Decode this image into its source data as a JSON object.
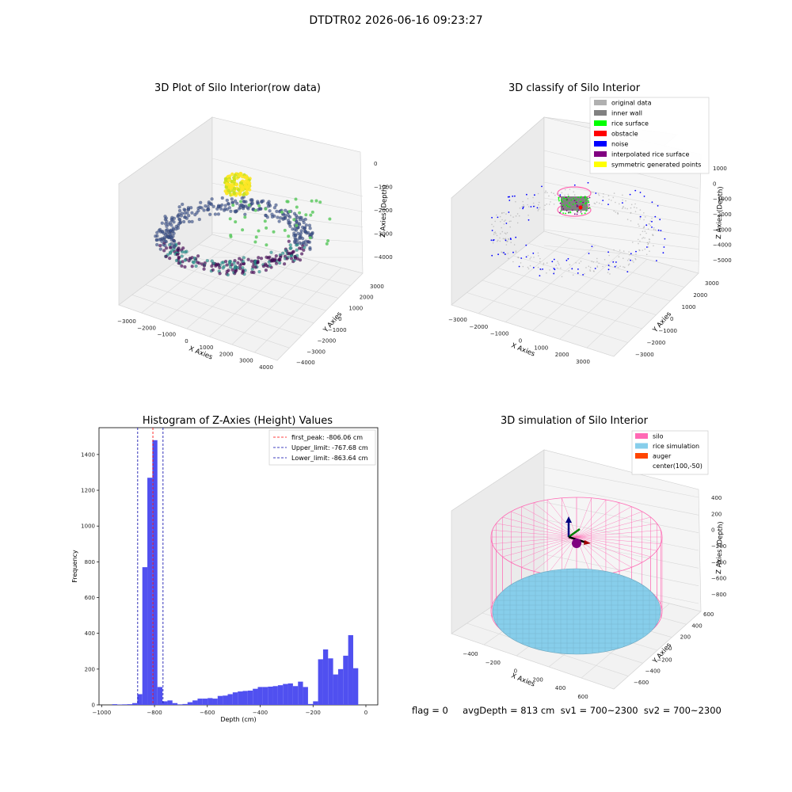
{
  "figure": {
    "suptitle": "DTDTR02 2026-06-16 09:23:27",
    "footer": "flag = 0     avgDepth = 813 cm  sv1 = 700~2300  sv2 = 700~2300"
  },
  "colors": {
    "hist_bar": "#5050f0",
    "peak_line": "#ff0000",
    "limit_line": "#0000aa",
    "silo": "#ff69b4",
    "rice": "#87ceeb",
    "auger": "#ff4500"
  },
  "chart_data": [
    {
      "type": "scatter",
      "projection": "3d",
      "title": "3D Plot of Silo Interior(row data)",
      "xlabel": "X Axies",
      "ylabel": "Y Axies",
      "zlabel": "Z Axies (Depth)",
      "xticks": [
        "−3000",
        "−2000",
        "−1000",
        "0",
        "1000",
        "2000",
        "3000",
        "4000"
      ],
      "yticks": [
        "−4000",
        "−3000",
        "−2000",
        "−1000",
        "0",
        "1000",
        "2000",
        "3000"
      ],
      "zticks": [
        "0",
        "−1000",
        "−2000",
        "−3000",
        "−4000"
      ],
      "colormap": "viridis"
    },
    {
      "type": "scatter",
      "projection": "3d",
      "title": "3D classify of Silo Interior",
      "xlabel": "X Axies",
      "ylabel": "Y Axies",
      "zlabel": "Z Axies (Depth)",
      "xticks": [
        "−3000",
        "−2000",
        "−1000",
        "0",
        "1000",
        "2000",
        "3000"
      ],
      "yticks": [
        "−3000",
        "−2000",
        "−1000",
        "0",
        "1000",
        "2000",
        "3000"
      ],
      "zticks": [
        "1000",
        "0",
        "−1000",
        "−2000",
        "−3000",
        "−4000",
        "−5000"
      ],
      "legend": [
        {
          "label": "original data",
          "color": "#b0b0b0"
        },
        {
          "label": "inner wall",
          "color": "#808080"
        },
        {
          "label": "rice surface",
          "color": "#00ff00"
        },
        {
          "label": "obstacle",
          "color": "#ff0000"
        },
        {
          "label": "noise",
          "color": "#0000ff"
        },
        {
          "label": "interpolated rice surface",
          "color": "#800080"
        },
        {
          "label": "symmetric generated points",
          "color": "#ffff00"
        }
      ],
      "legend_position": "upper right"
    },
    {
      "type": "bar",
      "title": "Histogram of Z-Axies (Height) Values",
      "xlabel": "Depth (cm)",
      "ylabel": "Frequency",
      "xlim": [
        -1010,
        45
      ],
      "ylim": [
        0,
        1550
      ],
      "xticks": [
        -1000,
        -800,
        -600,
        -400,
        -200,
        0
      ],
      "xtick_labels": [
        "−1000",
        "−800",
        "−600",
        "−400",
        "−200",
        "0"
      ],
      "yticks": [
        0,
        200,
        400,
        600,
        800,
        1000,
        1200,
        1400
      ],
      "bin_width": 19,
      "bins": [
        [
          -960,
          4
        ],
        [
          -941,
          2
        ],
        [
          -922,
          3
        ],
        [
          -903,
          4
        ],
        [
          -884,
          10
        ],
        [
          -865,
          60
        ],
        [
          -846,
          770
        ],
        [
          -827,
          1270
        ],
        [
          -808,
          1480
        ],
        [
          -789,
          100
        ],
        [
          -770,
          20
        ],
        [
          -751,
          25
        ],
        [
          -732,
          10
        ],
        [
          -713,
          3
        ],
        [
          -694,
          5
        ],
        [
          -675,
          15
        ],
        [
          -656,
          25
        ],
        [
          -637,
          35
        ],
        [
          -618,
          35
        ],
        [
          -599,
          38
        ],
        [
          -580,
          35
        ],
        [
          -561,
          50
        ],
        [
          -542,
          52
        ],
        [
          -523,
          60
        ],
        [
          -504,
          70
        ],
        [
          -485,
          75
        ],
        [
          -466,
          78
        ],
        [
          -447,
          80
        ],
        [
          -428,
          90
        ],
        [
          -409,
          100
        ],
        [
          -390,
          100
        ],
        [
          -371,
          102
        ],
        [
          -352,
          105
        ],
        [
          -333,
          110
        ],
        [
          -314,
          117
        ],
        [
          -295,
          120
        ],
        [
          -276,
          105
        ],
        [
          -257,
          130
        ],
        [
          -238,
          100
        ],
        [
          -219,
          5
        ],
        [
          -200,
          20
        ],
        [
          -181,
          255
        ],
        [
          -162,
          310
        ],
        [
          -143,
          260
        ],
        [
          -124,
          170
        ],
        [
          -105,
          200
        ],
        [
          -86,
          275
        ],
        [
          -67,
          390
        ],
        [
          -48,
          205
        ]
      ],
      "vlines": [
        {
          "x": -806.06,
          "label": "first_peak: -806.06 cm",
          "color": "#ff0000"
        },
        {
          "x": -767.68,
          "label": "Upper_limit: -767.68 cm",
          "color": "#0000aa"
        },
        {
          "x": -863.64,
          "label": "Lower_limit: -863.64 cm",
          "color": "#0000aa"
        }
      ],
      "legend_position": "upper right"
    },
    {
      "type": "surface",
      "projection": "3d",
      "title": "3D simulation of Silo Interior",
      "xlabel": "X Axies",
      "ylabel": "Y Axies",
      "zlabel": "Z Axies (Depth)",
      "xticks": [
        "−400",
        "−200",
        "0",
        "200",
        "400",
        "600"
      ],
      "yticks": [
        "−600",
        "−400",
        "−200",
        "0",
        "200",
        "400",
        "600"
      ],
      "zticks": [
        "400",
        "200",
        "0",
        "−200",
        "−400",
        "−600",
        "−800"
      ],
      "legend": [
        {
          "label": "silo",
          "color": "#ff69b4"
        },
        {
          "label": "rice simulation",
          "color": "#87ceeb"
        },
        {
          "label": "auger",
          "color": "#ff4500"
        },
        {
          "label": "center(100,-50)",
          "color": ""
        }
      ],
      "legend_position": "upper right"
    }
  ]
}
